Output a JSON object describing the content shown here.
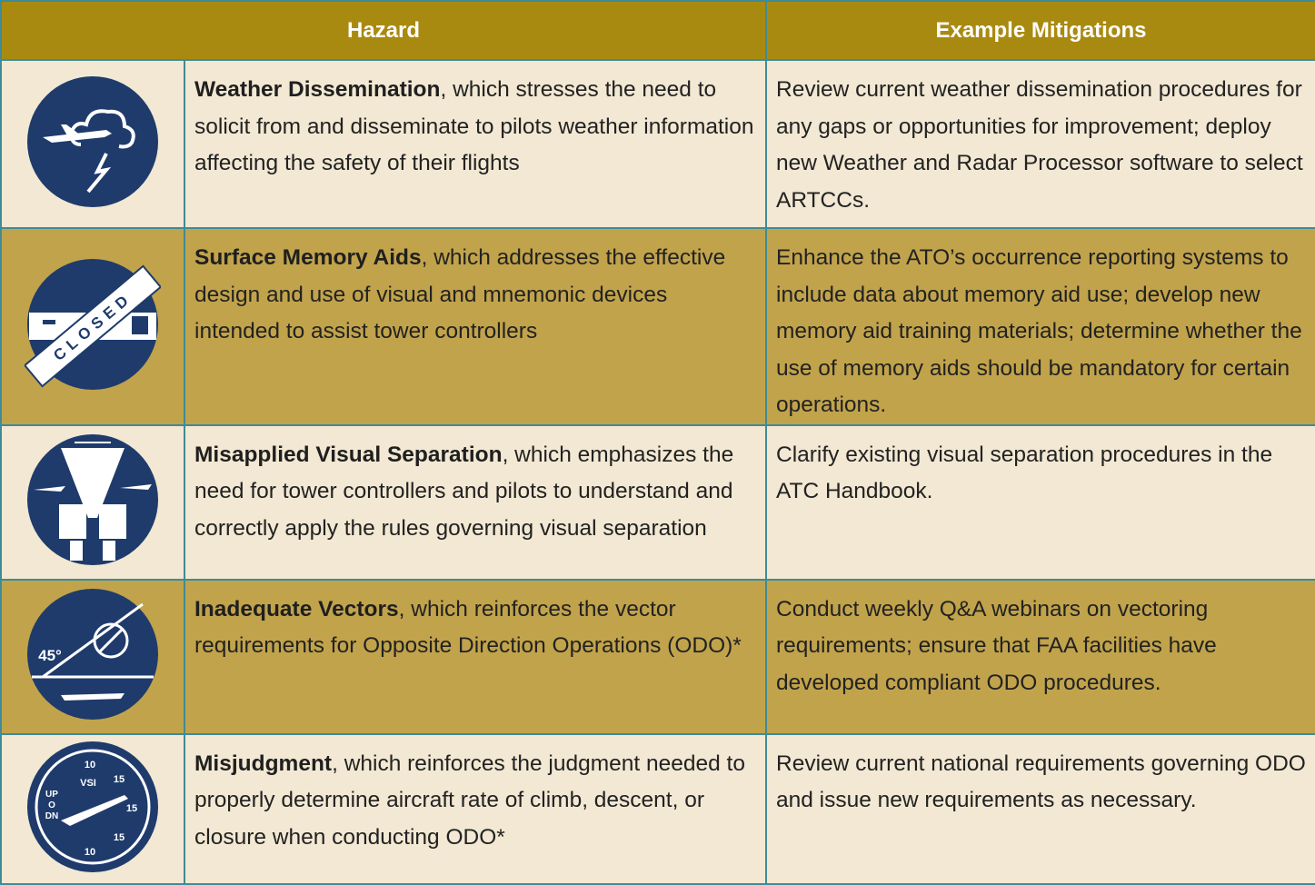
{
  "header": {
    "hazard": "Hazard",
    "mitigations": "Example Mitigations"
  },
  "rows": [
    {
      "name": "Weather Dissemination",
      "description": ", which stresses the need to solicit from and disseminate to pilots weather information affecting the safety of their flights",
      "mitigation": "Review current weather dissemination procedures for any gaps or opportunities for improvement; deploy new Weather and Radar Processor software to select ARTCCs.",
      "icon_labels": []
    },
    {
      "name": "Surface Memory Aids",
      "description": ", which addresses the effective design and use of visual and mnemonic devices intended to assist tower controllers",
      "mitigation": "Enhance the ATO’s occurrence reporting systems to include data about memory aid use; develop new memory aid training materials; determine whether the use of memory aids should be mandatory for certain operations.",
      "icon_labels": [
        "CLOSED"
      ]
    },
    {
      "name": "Misapplied Visual Separation",
      "description": ", which emphasizes the need for tower controllers and pilots to understand and correctly apply the rules governing visual separation",
      "mitigation": "Clarify existing visual separation procedures in the ATC Handbook.",
      "icon_labels": []
    },
    {
      "name": "Inadequate Vectors",
      "description": ", which reinforces the vector requirements for Opposite Direction Operations (ODO)*",
      "mitigation": "Conduct weekly Q&A webinars on vectoring requirements; ensure that FAA facilities have developed compliant ODO procedures.",
      "icon_labels": [
        "45°"
      ]
    },
    {
      "name": "Misjudgment",
      "description": ", which reinforces the judgment needed to properly determine aircraft rate of climb, descent, or closure when conducting ODO*",
      "mitigation": "Review current national requirements governing ODO and issue new requirements as necessary.",
      "icon_labels": [
        "10",
        "VSI",
        "15",
        "15",
        "15",
        "10",
        "UP",
        "O",
        "DN"
      ]
    }
  ]
}
